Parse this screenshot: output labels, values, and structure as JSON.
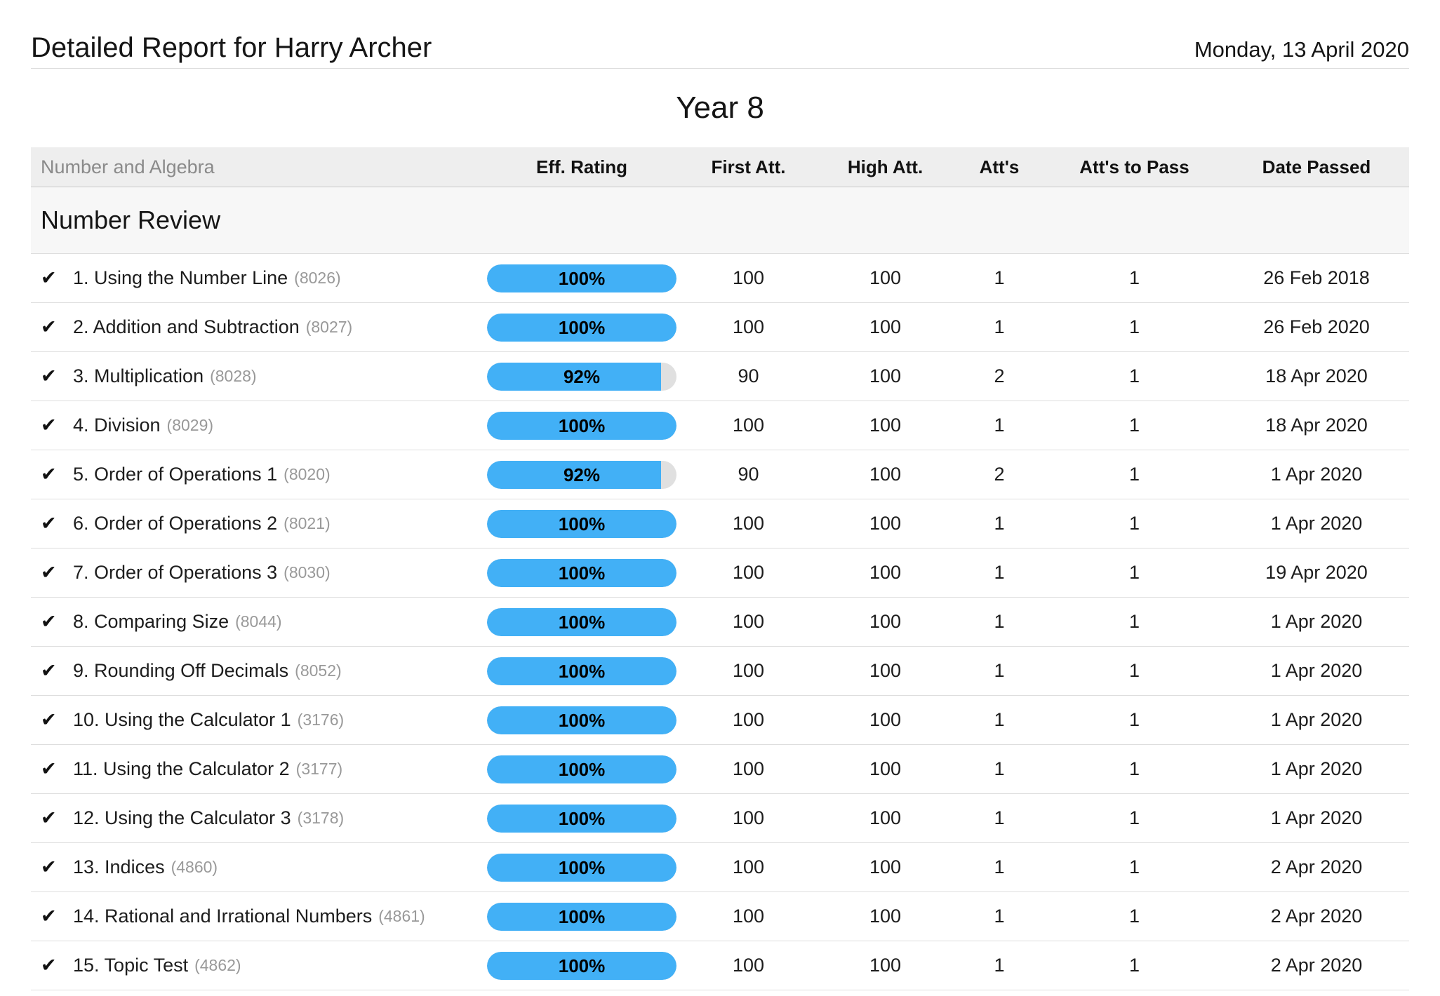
{
  "header": {
    "title": "Detailed Report for Harry Archer",
    "date": "Monday, 13 April 2020",
    "year": "Year 8"
  },
  "icons": {
    "check": "✔"
  },
  "colors": {
    "bar_fill_blue": "#42b0f6",
    "bar_track_gray": "#e0e0e0",
    "table_header_bg": "#eeeeee",
    "section_bg": "#f7f7f7"
  },
  "table": {
    "strand_label": "Number and Algebra",
    "columns": [
      "Eff. Rating",
      "First Att.",
      "High Att.",
      "Att's",
      "Att's to Pass",
      "Date Passed"
    ],
    "section_title": "Number Review",
    "rows": [
      {
        "label": "1. Using the Number Line",
        "code": "(8026)",
        "eff_pct": 100,
        "eff_label": "100%",
        "first_att": "100",
        "high_att": "100",
        "atts": "1",
        "atts_to_pass": "1",
        "date_passed": "26 Feb 2018"
      },
      {
        "label": "2. Addition and Subtraction",
        "code": "(8027)",
        "eff_pct": 100,
        "eff_label": "100%",
        "first_att": "100",
        "high_att": "100",
        "atts": "1",
        "atts_to_pass": "1",
        "date_passed": "26 Feb 2020"
      },
      {
        "label": "3. Multiplication",
        "code": "(8028)",
        "eff_pct": 92,
        "eff_label": "92%",
        "first_att": "90",
        "high_att": "100",
        "atts": "2",
        "atts_to_pass": "1",
        "date_passed": "18 Apr 2020"
      },
      {
        "label": "4. Division",
        "code": "(8029)",
        "eff_pct": 100,
        "eff_label": "100%",
        "first_att": "100",
        "high_att": "100",
        "atts": "1",
        "atts_to_pass": "1",
        "date_passed": "18 Apr 2020"
      },
      {
        "label": "5. Order of Operations 1",
        "code": "(8020)",
        "eff_pct": 92,
        "eff_label": "92%",
        "first_att": "90",
        "high_att": "100",
        "atts": "2",
        "atts_to_pass": "1",
        "date_passed": "1 Apr 2020"
      },
      {
        "label": "6. Order of Operations 2",
        "code": "(8021)",
        "eff_pct": 100,
        "eff_label": "100%",
        "first_att": "100",
        "high_att": "100",
        "atts": "1",
        "atts_to_pass": "1",
        "date_passed": "1 Apr 2020"
      },
      {
        "label": "7. Order of Operations 3",
        "code": "(8030)",
        "eff_pct": 100,
        "eff_label": "100%",
        "first_att": "100",
        "high_att": "100",
        "atts": "1",
        "atts_to_pass": "1",
        "date_passed": "19 Apr 2020"
      },
      {
        "label": "8. Comparing Size",
        "code": "(8044)",
        "eff_pct": 100,
        "eff_label": "100%",
        "first_att": "100",
        "high_att": "100",
        "atts": "1",
        "atts_to_pass": "1",
        "date_passed": "1 Apr 2020"
      },
      {
        "label": "9. Rounding Off Decimals",
        "code": "(8052)",
        "eff_pct": 100,
        "eff_label": "100%",
        "first_att": "100",
        "high_att": "100",
        "atts": "1",
        "atts_to_pass": "1",
        "date_passed": "1 Apr 2020"
      },
      {
        "label": "10. Using the Calculator 1",
        "code": "(3176)",
        "eff_pct": 100,
        "eff_label": "100%",
        "first_att": "100",
        "high_att": "100",
        "atts": "1",
        "atts_to_pass": "1",
        "date_passed": "1 Apr 2020"
      },
      {
        "label": "11. Using the Calculator 2",
        "code": "(3177)",
        "eff_pct": 100,
        "eff_label": "100%",
        "first_att": "100",
        "high_att": "100",
        "atts": "1",
        "atts_to_pass": "1",
        "date_passed": "1 Apr 2020"
      },
      {
        "label": "12. Using the Calculator 3",
        "code": "(3178)",
        "eff_pct": 100,
        "eff_label": "100%",
        "first_att": "100",
        "high_att": "100",
        "atts": "1",
        "atts_to_pass": "1",
        "date_passed": "1 Apr 2020"
      },
      {
        "label": "13. Indices",
        "code": "(4860)",
        "eff_pct": 100,
        "eff_label": "100%",
        "first_att": "100",
        "high_att": "100",
        "atts": "1",
        "atts_to_pass": "1",
        "date_passed": "2 Apr 2020"
      },
      {
        "label": "14. Rational and Irrational Numbers",
        "code": "(4861)",
        "eff_pct": 100,
        "eff_label": "100%",
        "first_att": "100",
        "high_att": "100",
        "atts": "1",
        "atts_to_pass": "1",
        "date_passed": "2 Apr 2020"
      },
      {
        "label": "15. Topic Test",
        "code": "(4862)",
        "eff_pct": 100,
        "eff_label": "100%",
        "first_att": "100",
        "high_att": "100",
        "atts": "1",
        "atts_to_pass": "1",
        "date_passed": "2 Apr 2020"
      }
    ]
  }
}
